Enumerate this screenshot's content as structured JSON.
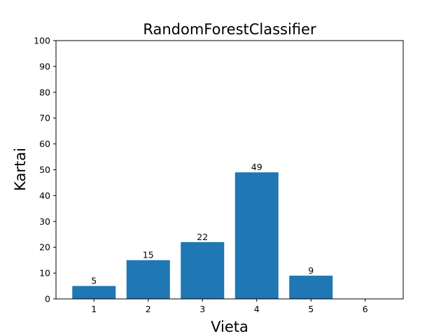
{
  "chart_data": {
    "type": "bar",
    "title": "RandomForestClassifier",
    "xlabel": "Vieta",
    "ylabel": "Kartai",
    "categories": [
      "1",
      "2",
      "3",
      "4",
      "5",
      "6"
    ],
    "values": [
      5,
      15,
      22,
      49,
      9,
      0
    ],
    "data_labels": [
      "5",
      "15",
      "22",
      "49",
      "9",
      ""
    ],
    "ylim": [
      0,
      100
    ],
    "yticks": [
      0,
      10,
      20,
      30,
      40,
      50,
      60,
      70,
      80,
      90,
      100
    ],
    "bar_color": "#1f77b4",
    "grid": false,
    "legend": false
  }
}
